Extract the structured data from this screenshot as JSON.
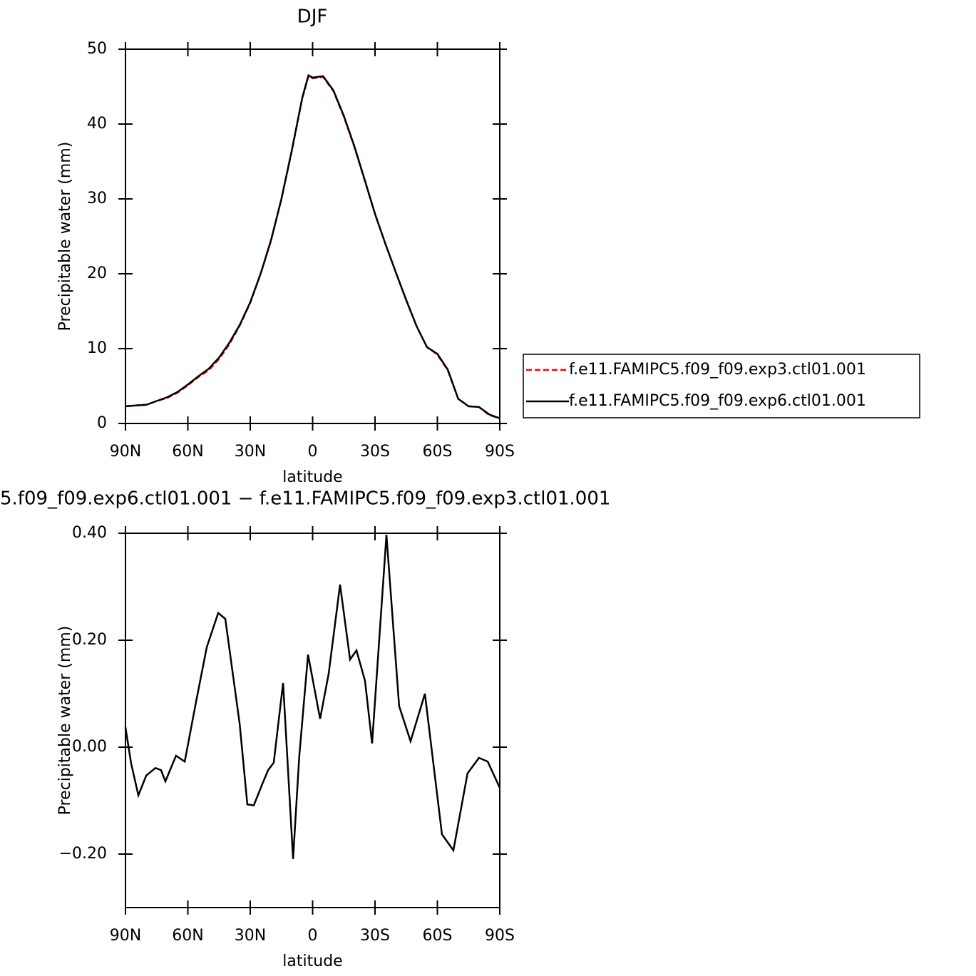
{
  "chart_data": [
    {
      "type": "line",
      "title": "DJF",
      "xlabel": "latitude",
      "ylabel": "Precipitable water (mm)",
      "x": [
        90,
        85,
        80,
        75,
        70,
        65,
        60,
        55,
        50,
        45,
        40,
        35,
        30,
        25,
        20,
        15,
        10,
        5,
        2,
        0,
        -5,
        -10,
        -15,
        -20,
        -25,
        -30,
        -35,
        -40,
        -45,
        -50,
        -55,
        -60,
        -65,
        -70,
        -75,
        -80,
        -85,
        -90
      ],
      "series": [
        {
          "name": "f.e11.FAMIPC5.f09_f09.exp3.ctl01.001",
          "color": "#ff0000",
          "dash": true,
          "values": [
            2.3,
            2.4,
            2.5,
            3.0,
            3.4,
            4.1,
            5.1,
            6.2,
            7.1,
            8.6,
            10.6,
            13.1,
            16.1,
            20.0,
            24.4,
            30.0,
            36.4,
            43.4,
            46.4,
            46.1,
            46.3,
            44.4,
            41.0,
            37.0,
            32.5,
            28.0,
            24.0,
            20.2,
            16.5,
            13.0,
            10.2,
            9.2,
            7.1,
            3.3,
            2.3,
            2.2,
            1.1,
            0.7
          ]
        },
        {
          "name": "f.e11.FAMIPC5.f09_f09.exp6.ctl01.001",
          "color": "#000000",
          "dash": false,
          "values": [
            2.3,
            2.4,
            2.5,
            3.0,
            3.5,
            4.2,
            5.2,
            6.3,
            7.3,
            8.8,
            10.8,
            13.2,
            16.2,
            20.0,
            24.5,
            30.0,
            36.5,
            43.5,
            46.5,
            46.2,
            46.4,
            44.5,
            41.1,
            37.1,
            32.6,
            28.0,
            24.0,
            20.2,
            16.5,
            13.0,
            10.2,
            9.3,
            7.2,
            3.3,
            2.3,
            2.2,
            1.2,
            0.7
          ]
        }
      ],
      "xlim": [
        90,
        -90
      ],
      "xticks": [
        {
          "value": 90,
          "label": "90N"
        },
        {
          "value": 60,
          "label": "60N"
        },
        {
          "value": 30,
          "label": "30N"
        },
        0,
        {
          "value": -30,
          "label": "30S"
        },
        {
          "value": -60,
          "label": "60S"
        },
        {
          "value": -90,
          "label": "90S"
        }
      ],
      "ylim": [
        0,
        50
      ],
      "yticks": [
        0,
        10,
        20,
        30,
        40,
        50
      ],
      "legend": "right"
    },
    {
      "type": "line",
      "title": "5.f09_f09.exp6.ctl01.001 − f.e11.FAMIPC5.f09_f09.exp3.ctl01.001",
      "xlabel": "latitude",
      "ylabel": "Precipitable water (mm)",
      "x": [
        90,
        87.3,
        83.8,
        80,
        75.6,
        72.9,
        70.8,
        65.7,
        61.5,
        56.1,
        50.9,
        45.4,
        42,
        35.1,
        31.4,
        28.3,
        24.2,
        21.4,
        18.7,
        14.2,
        9.4,
        6.4,
        2.2,
        -3.6,
        -7.7,
        -13.2,
        -18,
        -21.1,
        -25.2,
        -28.6,
        -35.5,
        -41.6,
        -47.1,
        -54,
        -62.2,
        -67.7,
        -74.5,
        -80,
        -84.2,
        -90
      ],
      "series": [
        {
          "color": "#000000",
          "dash": false,
          "values": [
            0.037,
            -0.03,
            -0.09,
            -0.053,
            -0.039,
            -0.043,
            -0.064,
            -0.016,
            -0.027,
            0.084,
            0.187,
            0.251,
            0.24,
            0.044,
            -0.107,
            -0.109,
            -0.069,
            -0.043,
            -0.029,
            0.12,
            -0.209,
            -0.016,
            0.173,
            0.053,
            0.137,
            0.304,
            0.164,
            0.181,
            0.124,
            0.007,
            0.397,
            0.077,
            0.011,
            0.1,
            -0.163,
            -0.193,
            -0.049,
            -0.02,
            -0.027,
            -0.076
          ]
        }
      ],
      "xlim": [
        90,
        -90
      ],
      "xticks": [
        {
          "value": 90,
          "label": "90N"
        },
        {
          "value": 60,
          "label": "60N"
        },
        {
          "value": 30,
          "label": "30N"
        },
        0,
        {
          "value": -30,
          "label": "30S"
        },
        {
          "value": -60,
          "label": "60S"
        },
        {
          "value": -90,
          "label": "90S"
        }
      ],
      "ylim": [
        -0.3,
        0.4
      ],
      "yticks": [
        {
          "value": -0.2,
          "label": "−0.20"
        },
        {
          "value": 0,
          "label": "0.00"
        },
        {
          "value": 0.2,
          "label": "0.20"
        },
        {
          "value": 0.4,
          "label": "0.40"
        }
      ]
    }
  ]
}
